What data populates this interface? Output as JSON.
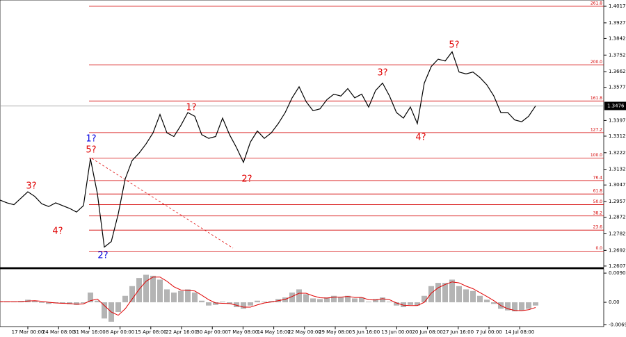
{
  "chart_data": [
    {
      "type": "line",
      "color": "#000000",
      "ylim": [
        1.2599,
        1.4051
      ],
      "yticks": [
        1.4017,
        1.3927,
        1.3842,
        1.3752,
        1.3662,
        1.3577,
        1.3397,
        1.3312,
        1.3222,
        1.3132,
        1.3047,
        1.2957,
        1.2872,
        1.2782,
        1.2692,
        1.2607
      ],
      "current_price": 1.3476,
      "values": [
        1.2965,
        1.295,
        1.294,
        1.2975,
        1.301,
        1.2985,
        1.2945,
        1.293,
        1.295,
        1.2935,
        1.292,
        1.29,
        1.2935,
        1.319,
        1.3,
        1.271,
        1.274,
        1.289,
        1.308,
        1.318,
        1.322,
        1.327,
        1.333,
        1.343,
        1.333,
        1.331,
        1.337,
        1.344,
        1.342,
        1.332,
        1.33,
        1.331,
        1.341,
        1.332,
        1.325,
        1.317,
        1.328,
        1.334,
        1.33,
        1.333,
        1.338,
        1.344,
        1.352,
        1.358,
        1.35,
        1.345,
        1.346,
        1.351,
        1.354,
        1.353,
        1.357,
        1.352,
        1.354,
        1.347,
        1.356,
        1.36,
        1.353,
        1.344,
        1.341,
        1.347,
        1.338,
        1.36,
        1.369,
        1.373,
        1.372,
        1.377,
        1.366,
        1.365,
        1.366,
        1.363,
        1.359,
        1.353,
        1.344,
        1.344,
        1.34,
        1.339,
        1.342,
        1.3476
      ],
      "level_color": "#d40000",
      "levels": [
        {
          "label": "261.8",
          "value": 1.4017
        },
        {
          "label": "200.0",
          "value": 1.3699
        },
        {
          "label": "161.8",
          "value": 1.3503
        },
        {
          "label": "127.2",
          "value": 1.3331
        },
        {
          "label": "100.0",
          "value": 1.3193
        },
        {
          "label": "76.4",
          "value": 1.3071
        },
        {
          "label": "61.8",
          "value": 1.2998
        },
        {
          "label": "50.0",
          "value": 1.294
        },
        {
          "label": "38.2",
          "value": 1.2879
        },
        {
          "label": "23.6",
          "value": 1.2802
        },
        {
          "label": "0.0",
          "value": 1.2688
        }
      ],
      "annotations": [
        {
          "text": "3?",
          "color": "#e00000"
        },
        {
          "text": "4?",
          "color": "#e00000"
        },
        {
          "text": "1?",
          "color": "#0000e0"
        },
        {
          "text": "5?",
          "color": "#e00000"
        },
        {
          "text": "2?",
          "color": "#0000e0"
        },
        {
          "text": "1?",
          "color": "#e00000"
        },
        {
          "text": "2?",
          "color": "#e00000"
        },
        {
          "text": "3?",
          "color": "#e00000"
        },
        {
          "text": "4?",
          "color": "#e00000"
        },
        {
          "text": "5?",
          "color": "#e00000"
        }
      ]
    },
    {
      "type": "macd",
      "ylim": [
        -0.0075,
        0.0101
      ],
      "yticks": [
        0.00901,
        {
          "value": 0,
          "label": "0.00"
        },
        -0.00697
      ],
      "categories": [
        "17 Mar 00:00",
        "24 Mar 08:00",
        "31 Mar 16:00",
        "8 Apr 00:00",
        "15 Apr 08:00",
        "22 Apr 16:00",
        "30 Apr 00:00",
        "7 May 08:00",
        "14 May 16:00",
        "22 May 00:00",
        "29 May 08:00",
        "5 Jun 16:00",
        "13 Jun 00:00",
        "20 Jun 08:00",
        "27 Jun 16:00",
        "7 Jul 00:00",
        "14 Jul 08:00"
      ],
      "histogram": {
        "color": "#b4b4b4",
        "values": [
          0.0003,
          0.0002,
          0.0001,
          0.0004,
          0.0008,
          0.0005,
          -0.0002,
          -0.0005,
          -0.0003,
          -0.0004,
          -0.0006,
          -0.0008,
          -0.0003,
          0.003,
          0.0005,
          -0.005,
          -0.006,
          -0.003,
          0.002,
          0.005,
          0.0075,
          0.0085,
          0.0082,
          0.007,
          0.004,
          0.003,
          0.0035,
          0.004,
          0.003,
          0.0005,
          -0.001,
          -0.0008,
          0.0002,
          -0.0005,
          -0.0015,
          -0.002,
          -0.001,
          0.0005,
          0.0002,
          0.0004,
          0.001,
          0.0015,
          0.003,
          0.004,
          0.0025,
          0.0012,
          0.001,
          0.0015,
          0.002,
          0.0015,
          0.002,
          0.0012,
          0.0015,
          0.0002,
          0.001,
          0.0015,
          0.0002,
          -0.001,
          -0.0015,
          -0.0008,
          -0.001,
          0.002,
          0.005,
          0.006,
          0.006,
          0.007,
          0.005,
          0.004,
          0.0035,
          0.002,
          0.0008,
          -0.0005,
          -0.002,
          -0.0025,
          -0.0028,
          -0.0025,
          -0.002,
          -0.001
        ]
      },
      "signal": {
        "color": "#e00000",
        "values": [
          0.0002,
          0.0002,
          0.0002,
          0.0002,
          0.0004,
          0.0005,
          0.0003,
          0,
          -0.0002,
          -0.0003,
          -0.0004,
          -0.0006,
          -0.0005,
          0.0005,
          0.001,
          -0.001,
          -0.003,
          -0.004,
          -0.002,
          0.001,
          0.004,
          0.0065,
          0.0078,
          0.0078,
          0.0065,
          0.0048,
          0.0038,
          0.0037,
          0.0035,
          0.0022,
          0.0008,
          -0.0002,
          -0.0003,
          -0.0004,
          -0.0009,
          -0.0015,
          -0.0015,
          -0.0008,
          -0.0002,
          0.0001,
          0.0005,
          0.0009,
          0.0018,
          0.0028,
          0.0028,
          0.002,
          0.0014,
          0.0013,
          0.0016,
          0.0016,
          0.0018,
          0.0015,
          0.0015,
          0.0008,
          0.0007,
          0.0011,
          0.0008,
          -0.0002,
          -0.0009,
          -0.001,
          -0.001,
          0,
          0.0028,
          0.0045,
          0.0055,
          0.0063,
          0.006,
          0.005,
          0.0042,
          0.003,
          0.0018,
          0.0005,
          -0.001,
          -0.002,
          -0.0025,
          -0.0026,
          -0.0023,
          -0.0016
        ]
      }
    }
  ]
}
